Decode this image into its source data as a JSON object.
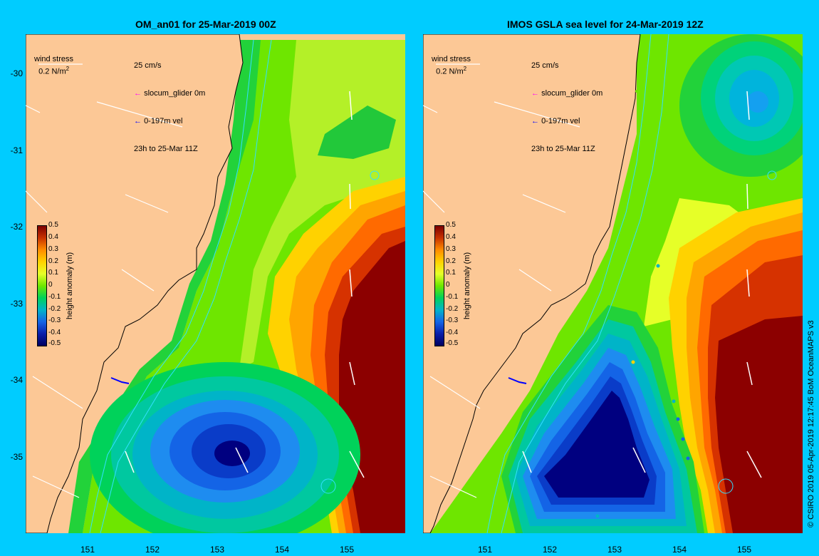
{
  "panels": [
    {
      "title": "OM_an01 for 25-Mar-2019 00Z",
      "wind_label": "wind stress",
      "wind_scale": "0.2 N/m",
      "wind_sup": "2",
      "legend_lines": [
        "25 cm/s",
        "slocum_glider 0m",
        "0-197m vel",
        "23h to 25-Mar 11Z"
      ]
    },
    {
      "title": "IMOS GSLA sea level  for 24-Mar-2019 12Z",
      "wind_label": "wind stress",
      "wind_scale": "0.2 N/m",
      "wind_sup": "2",
      "legend_lines": [
        "25 cm/s",
        "slocum_glider 0m",
        "0-197m vel",
        "23h to 25-Mar 11Z"
      ]
    }
  ],
  "axes": {
    "y_ticks": [
      "-30",
      "-31",
      "-32",
      "-33",
      "-34",
      "-35"
    ],
    "x_ticks": [
      "151",
      "152",
      "153",
      "154",
      "155"
    ]
  },
  "colorbar": {
    "title": "height anomaly (m)",
    "ticks": [
      "0.5",
      "0.4",
      "0.3",
      "0.2",
      "0.1",
      "0",
      "-0.1",
      "-0.2",
      "-0.3",
      "-0.4",
      "-0.5"
    ]
  },
  "credit": "© CSIRO 2019   05-Apr-2019 12:17:45 BoM OceanMAPS v3",
  "colors": {
    "background": "#00ccff",
    "land": "#fcc896",
    "glider_magenta": "#ff00ff",
    "vel_blue": "#0000ff"
  }
}
